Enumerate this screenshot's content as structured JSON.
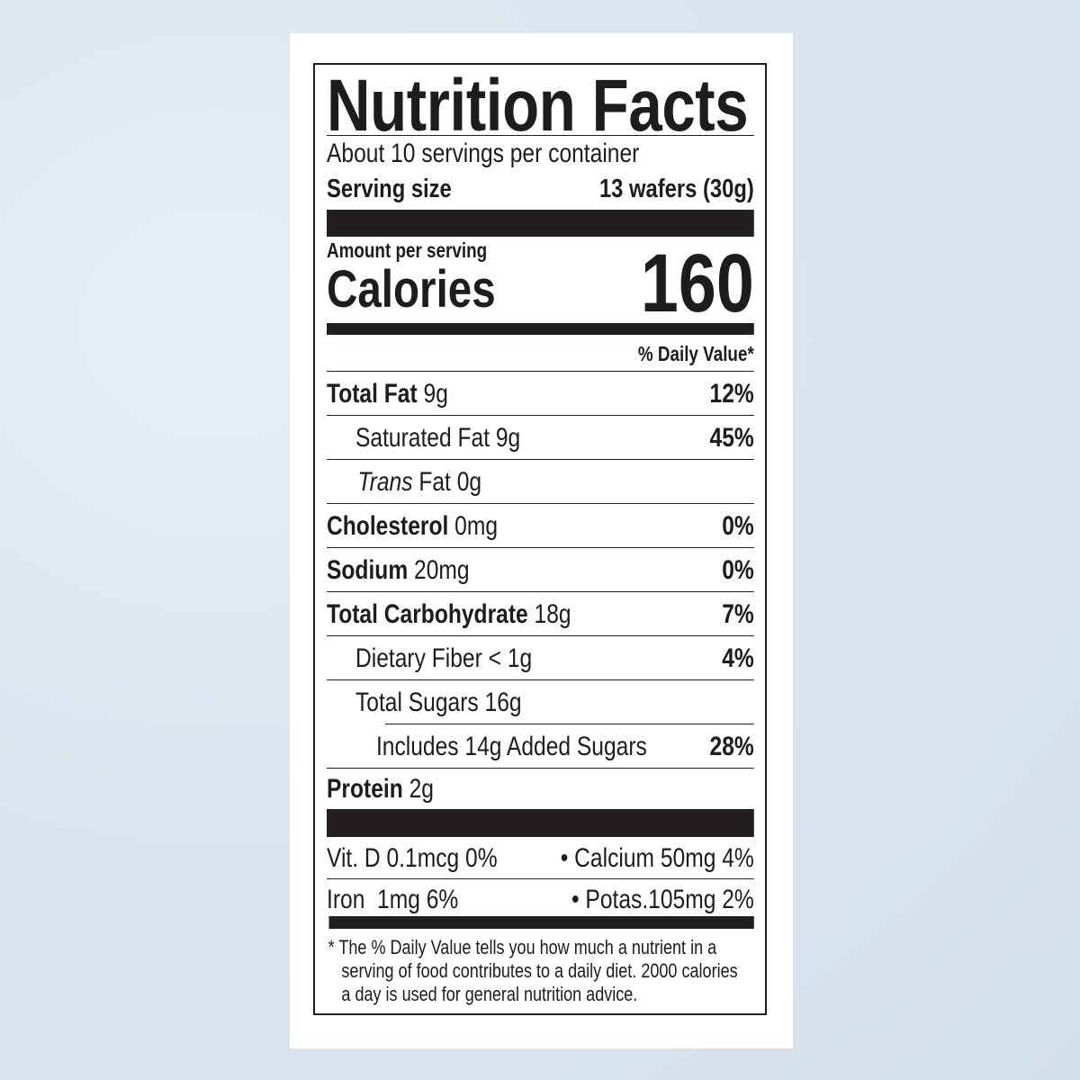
{
  "label": {
    "title": "Nutrition Facts",
    "servings_per_container": "About 10 servings per container",
    "serving_size": {
      "label": "Serving size",
      "value": "13 wafers (30g)"
    },
    "amount_per_serving": "Amount per serving",
    "calories": {
      "label": "Calories",
      "value": "160"
    },
    "daily_value_header": "% Daily Value*",
    "nutrients": [
      {
        "name": "Total Fat",
        "amount": "9g",
        "dv": "12%"
      },
      {
        "name": "Saturated Fat 9g",
        "dv": "45%"
      },
      {
        "prefix": "Trans",
        "name": " Fat 0g",
        "dv": ""
      },
      {
        "name": "Cholesterol",
        "amount": "0mg",
        "dv": "0%"
      },
      {
        "name": "Sodium",
        "amount": "20mg",
        "dv": "0%"
      },
      {
        "name": "Total Carbohydrate",
        "amount": "18g",
        "dv": "7%"
      },
      {
        "name": "Dietary Fiber < 1g",
        "dv": "4%"
      },
      {
        "name": "Total Sugars 16g",
        "dv": ""
      },
      {
        "name": "Includes 14g Added Sugars",
        "dv": "28%"
      },
      {
        "name": "Protein",
        "amount": "2g",
        "dv": ""
      }
    ],
    "vitamins": [
      {
        "left": "Vit. D 0.1mcg 0%",
        "right": "• Calcium 50mg 4%"
      },
      {
        "left": "Iron  1mg 6%",
        "right": "• Potas.105mg 2%"
      }
    ],
    "footnote": "* The % Daily Value tells you how much a nutrient in a serving of food contributes to a daily diet. 2000 calories a day is used for general nutrition advice."
  }
}
